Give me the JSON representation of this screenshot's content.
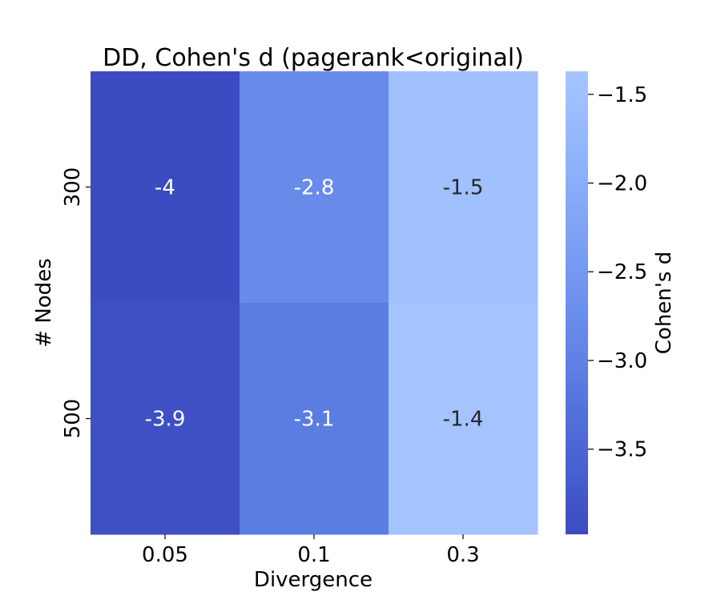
{
  "chart_data": {
    "type": "heatmap",
    "title": "DD, Cohen's d (pagerank<original)",
    "xlabel": "Divergence",
    "ylabel": "# Nodes",
    "x_categories": [
      "0.05",
      "0.1",
      "0.3"
    ],
    "y_categories": [
      "300",
      "500"
    ],
    "values": [
      [
        -4.0,
        -2.8,
        -1.5
      ],
      [
        -3.9,
        -3.1,
        -1.4
      ]
    ],
    "cell_labels": [
      [
        "-4",
        "-2.8",
        "-1.5"
      ],
      [
        "-3.9",
        "-3.1",
        "-1.4"
      ]
    ],
    "colorbar": {
      "label": "Cohen's d",
      "range": [
        -3.98,
        -1.37
      ],
      "ticks": [
        -1.5,
        -2.0,
        -2.5,
        -3.0,
        -3.5
      ],
      "tick_labels": [
        "−1.5",
        "−2.0",
        "−2.5",
        "−3.0",
        "−3.5"
      ],
      "colormap": [
        "#3b4cc0",
        "#4a63d3",
        "#5b7be1",
        "#6d91ee",
        "#7fa4f6",
        "#92b6fb",
        "#a6c4ff"
      ]
    },
    "grid": false
  }
}
